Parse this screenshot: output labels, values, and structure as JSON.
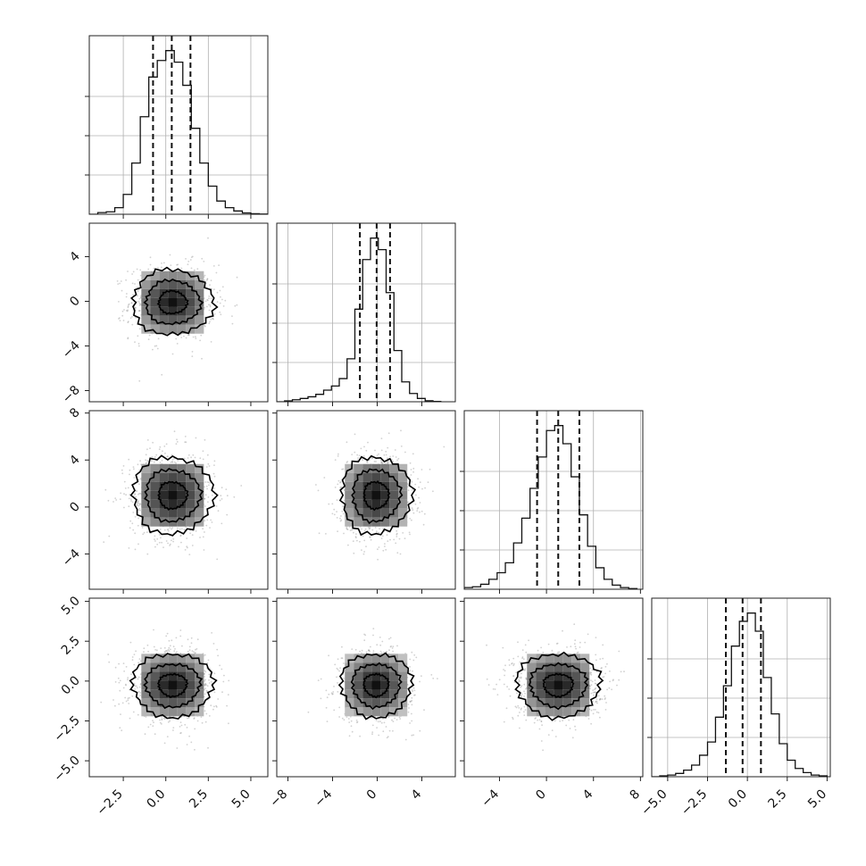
{
  "chart_data": {
    "type": "corner",
    "description_of_layout": "4x4 lower-triangle corner plot; histograms on the diagonal, 2D density contours with scatter below",
    "parameters": [
      {
        "range": [
          -4.5,
          6.0
        ],
        "ticks": [
          -2.5,
          0.0,
          2.5,
          5.0
        ],
        "tick_labels": [
          "−2.5",
          "0.0",
          "2.5",
          "5.0"
        ],
        "quantiles": [
          -0.75,
          0.35,
          1.45
        ],
        "mean": 0.4,
        "sigma": 1.2
      },
      {
        "range": [
          -9.0,
          7.0
        ],
        "ticks": [
          -8,
          -4,
          0,
          4
        ],
        "tick_labels": [
          "−8",
          "−4",
          "0",
          "4"
        ],
        "quantiles": [
          -1.55,
          -0.05,
          1.15
        ],
        "mean": -0.1,
        "sigma": 1.6
      },
      {
        "range": [
          -7.0,
          8.2
        ],
        "ticks": [
          -4,
          0,
          4,
          8
        ],
        "tick_labels": [
          "−4",
          "0",
          "4",
          "8"
        ],
        "quantiles": [
          -0.8,
          1.0,
          2.8
        ],
        "mean": 1.0,
        "sigma": 1.8
      },
      {
        "range": [
          -6.0,
          5.2
        ],
        "ticks": [
          -5.0,
          -2.5,
          0.0,
          2.5,
          5.0
        ],
        "tick_labels": [
          "−5.0",
          "−2.5",
          "0.0",
          "2.5",
          "5.0"
        ],
        "quantiles": [
          -1.35,
          -0.3,
          0.85
        ],
        "mean": -0.25,
        "sigma": 1.1
      }
    ],
    "histograms": [
      {
        "bins": [
          -4.5,
          -4.0,
          -3.5,
          -3.0,
          -2.5,
          -2.0,
          -1.5,
          -1.0,
          -0.5,
          0.0,
          0.5,
          1.0,
          1.5,
          2.0,
          2.5,
          3.0,
          3.5,
          4.0,
          4.5,
          5.0,
          5.5,
          6.0
        ],
        "counts": [
          0.0,
          0.01,
          0.015,
          0.04,
          0.12,
          0.31,
          0.59,
          0.83,
          0.93,
          0.99,
          0.92,
          0.78,
          0.52,
          0.31,
          0.17,
          0.08,
          0.04,
          0.02,
          0.008,
          0.003,
          0.001
        ]
      },
      {
        "bins": [
          -9,
          -8.3,
          -7.6,
          -6.9,
          -6.2,
          -5.5,
          -4.8,
          -4.1,
          -3.4,
          -2.7,
          -2.0,
          -1.3,
          -0.6,
          0.1,
          0.8,
          1.5,
          2.2,
          2.9,
          3.6,
          4.3,
          5.0,
          5.7
        ],
        "counts": [
          0.0,
          0.005,
          0.012,
          0.02,
          0.03,
          0.045,
          0.07,
          0.095,
          0.14,
          0.26,
          0.56,
          0.86,
          0.99,
          0.92,
          0.66,
          0.31,
          0.12,
          0.05,
          0.02,
          0.006,
          0.002
        ]
      },
      {
        "bins": [
          -7.0,
          -6.3,
          -5.6,
          -4.9,
          -4.2,
          -3.5,
          -2.8,
          -2.1,
          -1.4,
          -0.7,
          0.0,
          0.7,
          1.4,
          2.1,
          2.8,
          3.5,
          4.2,
          4.9,
          5.6,
          6.3,
          7.0,
          7.7
        ],
        "counts": [
          0.01,
          0.015,
          0.03,
          0.06,
          0.1,
          0.16,
          0.28,
          0.43,
          0.61,
          0.8,
          0.96,
          0.99,
          0.88,
          0.68,
          0.45,
          0.26,
          0.13,
          0.06,
          0.025,
          0.01,
          0.004
        ]
      },
      {
        "bins": [
          -6.0,
          -5.5,
          -5.0,
          -4.5,
          -4.0,
          -3.5,
          -3.0,
          -2.5,
          -2.0,
          -1.5,
          -1.0,
          -0.5,
          0.0,
          0.5,
          1.0,
          1.5,
          2.0,
          2.5,
          3.0,
          3.5,
          4.0,
          4.5,
          5.0
        ],
        "counts": [
          0.0,
          0.005,
          0.01,
          0.02,
          0.04,
          0.07,
          0.13,
          0.21,
          0.36,
          0.55,
          0.79,
          0.94,
          0.99,
          0.88,
          0.6,
          0.38,
          0.2,
          0.1,
          0.05,
          0.025,
          0.01,
          0.005
        ]
      }
    ],
    "histogram_grid": "on",
    "2d_panels": "density contours (3 levels) over grey scatter points and shaded 2D histogram"
  }
}
